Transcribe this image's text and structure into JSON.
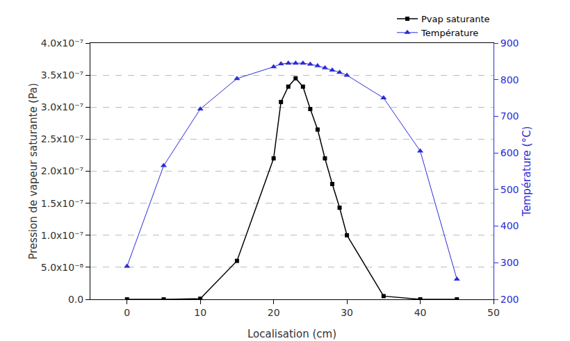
{
  "chart_data": {
    "type": "line",
    "x_label": "Localisation (cm)",
    "y_label": "Pression de vapeur saturante (Pa)",
    "y2_label": "Température (°C)",
    "xlim": [
      -5,
      50
    ],
    "xticks": [
      0,
      10,
      20,
      30,
      40,
      50
    ],
    "ylim": [
      0,
      4e-07
    ],
    "yticks": [
      {
        "value": 0,
        "label": "0.0"
      },
      {
        "value": 5e-08,
        "label": "5.0x10⁻⁸"
      },
      {
        "value": 1e-07,
        "label": "1.0x10⁻⁷"
      },
      {
        "value": 1.5e-07,
        "label": "1.5x10⁻⁷"
      },
      {
        "value": 2e-07,
        "label": "2.0x10⁻⁷"
      },
      {
        "value": 2.5e-07,
        "label": "2.5x10⁻⁷"
      },
      {
        "value": 3e-07,
        "label": "3.0x10⁻⁷"
      },
      {
        "value": 3.5e-07,
        "label": "3.5x10⁻⁷"
      },
      {
        "value": 4e-07,
        "label": "4.0x10⁻⁷"
      }
    ],
    "y2lim": [
      200,
      900
    ],
    "y2ticks": [
      200,
      300,
      400,
      500,
      600,
      700,
      800,
      900
    ],
    "grid": true,
    "legend": "upper right",
    "x": [
      0,
      5,
      10,
      15,
      20,
      21,
      22,
      23,
      24,
      25,
      26,
      27,
      28,
      29,
      30,
      35,
      40,
      45
    ],
    "series": [
      {
        "name": "Pvap saturante",
        "color": "#000000",
        "marker": "square",
        "values": [
          0,
          0,
          1e-09,
          6e-08,
          2.2e-07,
          3.08e-07,
          3.32e-07,
          3.45e-07,
          3.32e-07,
          2.97e-07,
          2.65e-07,
          2.2e-07,
          1.8e-07,
          1.43e-07,
          1e-07,
          5e-09,
          0,
          0
        ]
      },
      {
        "name": "Température",
        "color": "#2b2bd9",
        "marker": "triangle",
        "axis": "y2",
        "values": [
          290,
          565,
          720,
          803,
          835,
          843,
          845,
          845,
          845,
          842,
          838,
          832,
          826,
          820,
          812,
          750,
          605,
          255
        ]
      }
    ]
  }
}
